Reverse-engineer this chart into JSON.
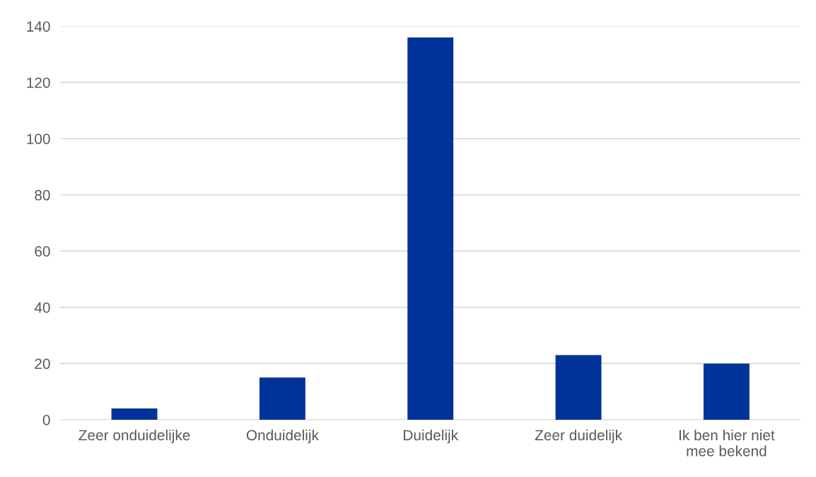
{
  "chart_data": {
    "type": "bar",
    "categories": [
      "Zeer onduidelijke",
      "Onduidelijk",
      "Duidelijk",
      "Zeer duidelijk",
      "Ik ben hier niet\nmee bekend"
    ],
    "values": [
      4,
      15,
      136,
      23,
      20
    ],
    "color": "#003399",
    "ylim": [
      0,
      140
    ],
    "yticks": [
      0,
      20,
      40,
      60,
      80,
      100,
      120,
      140
    ],
    "grid": "y",
    "legend": false
  }
}
